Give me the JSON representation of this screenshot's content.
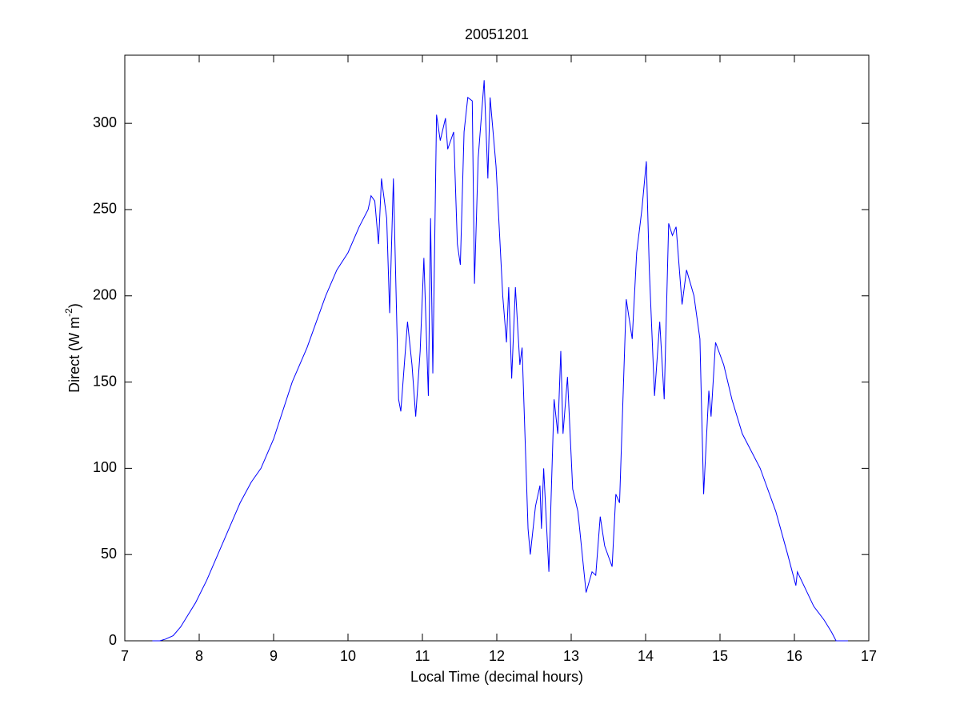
{
  "chart_data": {
    "type": "line",
    "title": "20051201",
    "xlabel": "Local Time (decimal hours)",
    "ylabel": {
      "text": "Direct (W m",
      "superscript": "-2",
      "suffix": ")"
    },
    "xlim": [
      7,
      17
    ],
    "xticks": [
      7,
      8,
      9,
      10,
      11,
      12,
      13,
      14,
      15,
      16,
      17
    ],
    "ylim": [
      0,
      339.5
    ],
    "yticks": [
      0,
      50,
      100,
      150,
      200,
      250,
      300
    ],
    "grid": false,
    "color": "#0000ff",
    "x": [
      7.37,
      7.47,
      7.55,
      7.65,
      7.75,
      7.85,
      7.95,
      8.1,
      8.25,
      8.4,
      8.55,
      8.7,
      8.83,
      9.0,
      9.25,
      9.45,
      9.55,
      9.7,
      9.85,
      10.0,
      10.15,
      10.27,
      10.31,
      10.36,
      10.41,
      10.45,
      10.52,
      10.56,
      10.61,
      10.68,
      10.71,
      10.8,
      10.86,
      10.91,
      10.97,
      11.02,
      11.08,
      11.11,
      11.14,
      11.19,
      11.24,
      11.31,
      11.34,
      11.42,
      11.47,
      11.51,
      11.56,
      11.61,
      11.67,
      11.7,
      11.75,
      11.83,
      11.88,
      11.91,
      11.99,
      12.08,
      12.13,
      12.16,
      12.2,
      12.25,
      12.31,
      12.34,
      12.42,
      12.45,
      12.52,
      12.58,
      12.6,
      12.63,
      12.7,
      12.77,
      12.82,
      12.86,
      12.89,
      12.95,
      13.02,
      13.09,
      13.2,
      13.28,
      13.33,
      13.39,
      13.45,
      13.55,
      13.6,
      13.65,
      13.74,
      13.82,
      13.88,
      13.95,
      14.01,
      14.05,
      14.12,
      14.19,
      14.25,
      14.31,
      14.36,
      14.41,
      14.49,
      14.55,
      14.65,
      14.73,
      14.78,
      14.85,
      14.88,
      14.94,
      15.05,
      15.16,
      15.3,
      15.54,
      15.75,
      15.91,
      16.02,
      16.04,
      16.15,
      16.26,
      16.4,
      16.5,
      16.56,
      16.72
    ],
    "values": [
      0,
      0,
      1,
      3,
      8,
      15,
      22,
      35,
      50,
      65,
      80,
      92,
      100,
      117,
      150,
      170,
      182,
      200,
      215,
      225,
      240,
      250,
      258,
      255,
      230,
      268,
      245,
      190,
      268,
      140,
      133,
      185,
      160,
      130,
      168,
      222,
      142,
      245,
      155,
      305,
      290,
      303,
      285,
      295,
      230,
      218,
      295,
      315,
      313,
      207,
      280,
      325,
      268,
      315,
      275,
      200,
      173,
      205,
      152,
      205,
      160,
      170,
      65,
      50,
      78,
      90,
      65,
      100,
      40,
      140,
      120,
      168,
      120,
      153,
      88,
      75,
      28,
      40,
      38,
      72,
      55,
      43,
      85,
      80,
      198,
      175,
      225,
      250,
      278,
      215,
      142,
      185,
      140,
      242,
      235,
      240,
      195,
      215,
      200,
      175,
      85,
      145,
      130,
      173,
      160,
      140,
      120,
      100,
      75,
      50,
      32,
      40,
      30,
      20,
      12,
      5,
      0,
      0
    ]
  }
}
